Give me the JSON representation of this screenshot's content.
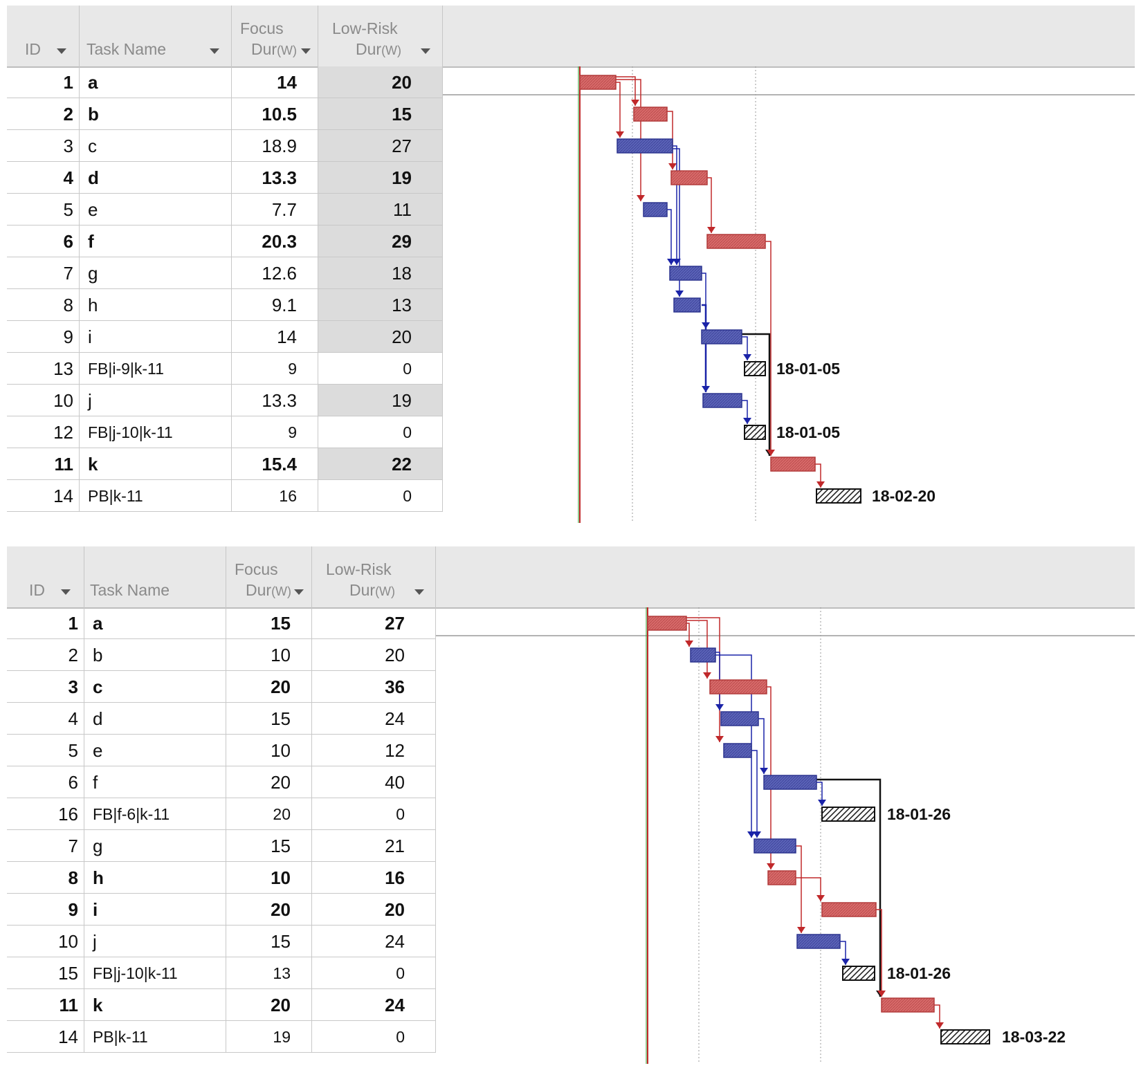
{
  "colors": {
    "critical_bar": "#d86a6a",
    "noncritical_bar": "#5b63b8",
    "critical_link": "#c0282a",
    "noncritical_link": "#1a23a8",
    "buffer_link": "#111111",
    "today_line": "#2a9a2a",
    "header_bg": "#e8e8e8",
    "shaded_cell": "#dcdcdc"
  },
  "icons": {
    "column_menu": "chevron-down-icon"
  },
  "top_table": {
    "headers": {
      "id": "ID",
      "task_name": "Task Name",
      "focus_line1": "Focus",
      "focus_line2": "Dur",
      "focus_unit": "(W)",
      "lowrisk_line1": "Low-Risk",
      "lowrisk_line2": "Dur",
      "lowrisk_unit": "(W)"
    },
    "rows": [
      {
        "id": "1",
        "name": "a",
        "focus": "14",
        "lowrisk": "20",
        "bold": true,
        "shaded": true
      },
      {
        "id": "2",
        "name": "b",
        "focus": "10.5",
        "lowrisk": "15",
        "bold": true,
        "shaded": true
      },
      {
        "id": "3",
        "name": "c",
        "focus": "18.9",
        "lowrisk": "27",
        "bold": false,
        "shaded": true
      },
      {
        "id": "4",
        "name": "d",
        "focus": "13.3",
        "lowrisk": "19",
        "bold": true,
        "shaded": true
      },
      {
        "id": "5",
        "name": "e",
        "focus": "7.7",
        "lowrisk": "11",
        "bold": false,
        "shaded": true
      },
      {
        "id": "6",
        "name": "f",
        "focus": "20.3",
        "lowrisk": "29",
        "bold": true,
        "shaded": true
      },
      {
        "id": "7",
        "name": "g",
        "focus": "12.6",
        "lowrisk": "18",
        "bold": false,
        "shaded": true
      },
      {
        "id": "8",
        "name": "h",
        "focus": "9.1",
        "lowrisk": "13",
        "bold": false,
        "shaded": true
      },
      {
        "id": "9",
        "name": "i",
        "focus": "14",
        "lowrisk": "20",
        "bold": false,
        "shaded": true
      },
      {
        "id": "13",
        "name": "FB|i-9|k-11",
        "focus": "9",
        "lowrisk": "0",
        "bold": false,
        "shaded": false
      },
      {
        "id": "10",
        "name": "j",
        "focus": "13.3",
        "lowrisk": "19",
        "bold": false,
        "shaded": true
      },
      {
        "id": "12",
        "name": "FB|j-10|k-11",
        "focus": "9",
        "lowrisk": "0",
        "bold": false,
        "shaded": false
      },
      {
        "id": "11",
        "name": "k",
        "focus": "15.4",
        "lowrisk": "22",
        "bold": true,
        "shaded": true
      },
      {
        "id": "14",
        "name": "PB|k-11",
        "focus": "16",
        "lowrisk": "0",
        "bold": false,
        "shaded": false
      }
    ],
    "milestone_labels": [
      "18-01-05",
      "18-01-05",
      "18-02-20"
    ]
  },
  "bottom_table": {
    "headers": {
      "id": "ID",
      "task_name": "Task Name",
      "focus_line1": "Focus",
      "focus_line2": "Dur",
      "focus_unit": "(W)",
      "lowrisk_line1": "Low-Risk",
      "lowrisk_line2": "Dur",
      "lowrisk_unit": "(W)"
    },
    "rows": [
      {
        "id": "1",
        "name": "a",
        "focus": "15",
        "lowrisk": "27",
        "bold": true
      },
      {
        "id": "2",
        "name": "b",
        "focus": "10",
        "lowrisk": "20",
        "bold": false
      },
      {
        "id": "3",
        "name": "c",
        "focus": "20",
        "lowrisk": "36",
        "bold": true
      },
      {
        "id": "4",
        "name": "d",
        "focus": "15",
        "lowrisk": "24",
        "bold": false
      },
      {
        "id": "5",
        "name": "e",
        "focus": "10",
        "lowrisk": "12",
        "bold": false
      },
      {
        "id": "6",
        "name": "f",
        "focus": "20",
        "lowrisk": "40",
        "bold": false
      },
      {
        "id": "16",
        "name": "FB|f-6|k-11",
        "focus": "20",
        "lowrisk": "0",
        "bold": false
      },
      {
        "id": "7",
        "name": "g",
        "focus": "15",
        "lowrisk": "21",
        "bold": false
      },
      {
        "id": "8",
        "name": "h",
        "focus": "10",
        "lowrisk": "16",
        "bold": true
      },
      {
        "id": "9",
        "name": "i",
        "focus": "20",
        "lowrisk": "20",
        "bold": true
      },
      {
        "id": "10",
        "name": "j",
        "focus": "15",
        "lowrisk": "24",
        "bold": false
      },
      {
        "id": "15",
        "name": "FB|j-10|k-11",
        "focus": "13",
        "lowrisk": "0",
        "bold": false
      },
      {
        "id": "11",
        "name": "k",
        "focus": "20",
        "lowrisk": "24",
        "bold": true
      },
      {
        "id": "14",
        "name": "PB|k-11",
        "focus": "19",
        "lowrisk": "0",
        "bold": false
      }
    ],
    "milestone_labels": [
      "18-01-26",
      "18-01-26",
      "18-03-22"
    ]
  }
}
